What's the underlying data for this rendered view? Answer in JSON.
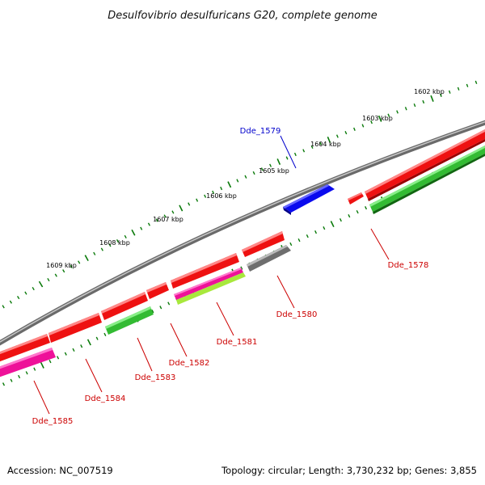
{
  "title": "Desulfovibrio desulfuricans G20, complete genome",
  "footer": {
    "accession": "Accession: NC_007519",
    "summary": "Topology: circular; Length: 3,730,232 bp; Genes: 3,855"
  },
  "colors": {
    "backbone": "#8a8a8a",
    "kbp_ticks": "#0a7a0a",
    "label_forward": "#0000cc",
    "label_reverse": "#cc0000"
  },
  "scale_labels": [
    "1602 kbp",
    "1603 kbp",
    "1604 kbp",
    "1605 kbp",
    "1606 kbp",
    "1607 kbp",
    "1608 kbp",
    "1609 kbp"
  ],
  "genes": [
    {
      "id": "Dde_1579",
      "strand": "forward",
      "color": "#0a0aee"
    },
    {
      "id": "Dde_1578",
      "strand": "reverse",
      "color": "#ee1111"
    },
    {
      "id": "Dde_1580",
      "strand": "reverse",
      "color": "#6e6e6e"
    },
    {
      "id": "Dde_1581",
      "strand": "reverse",
      "color": "#a8e83c"
    },
    {
      "id": "Dde_1582",
      "strand": "reverse",
      "color": "#ee1111"
    },
    {
      "id": "Dde_1583",
      "strand": "reverse",
      "color": "#33bb33"
    },
    {
      "id": "Dde_1584",
      "strand": "reverse",
      "color": "#ee1111"
    },
    {
      "id": "Dde_1585",
      "strand": "reverse",
      "color": "#ee1199"
    }
  ]
}
